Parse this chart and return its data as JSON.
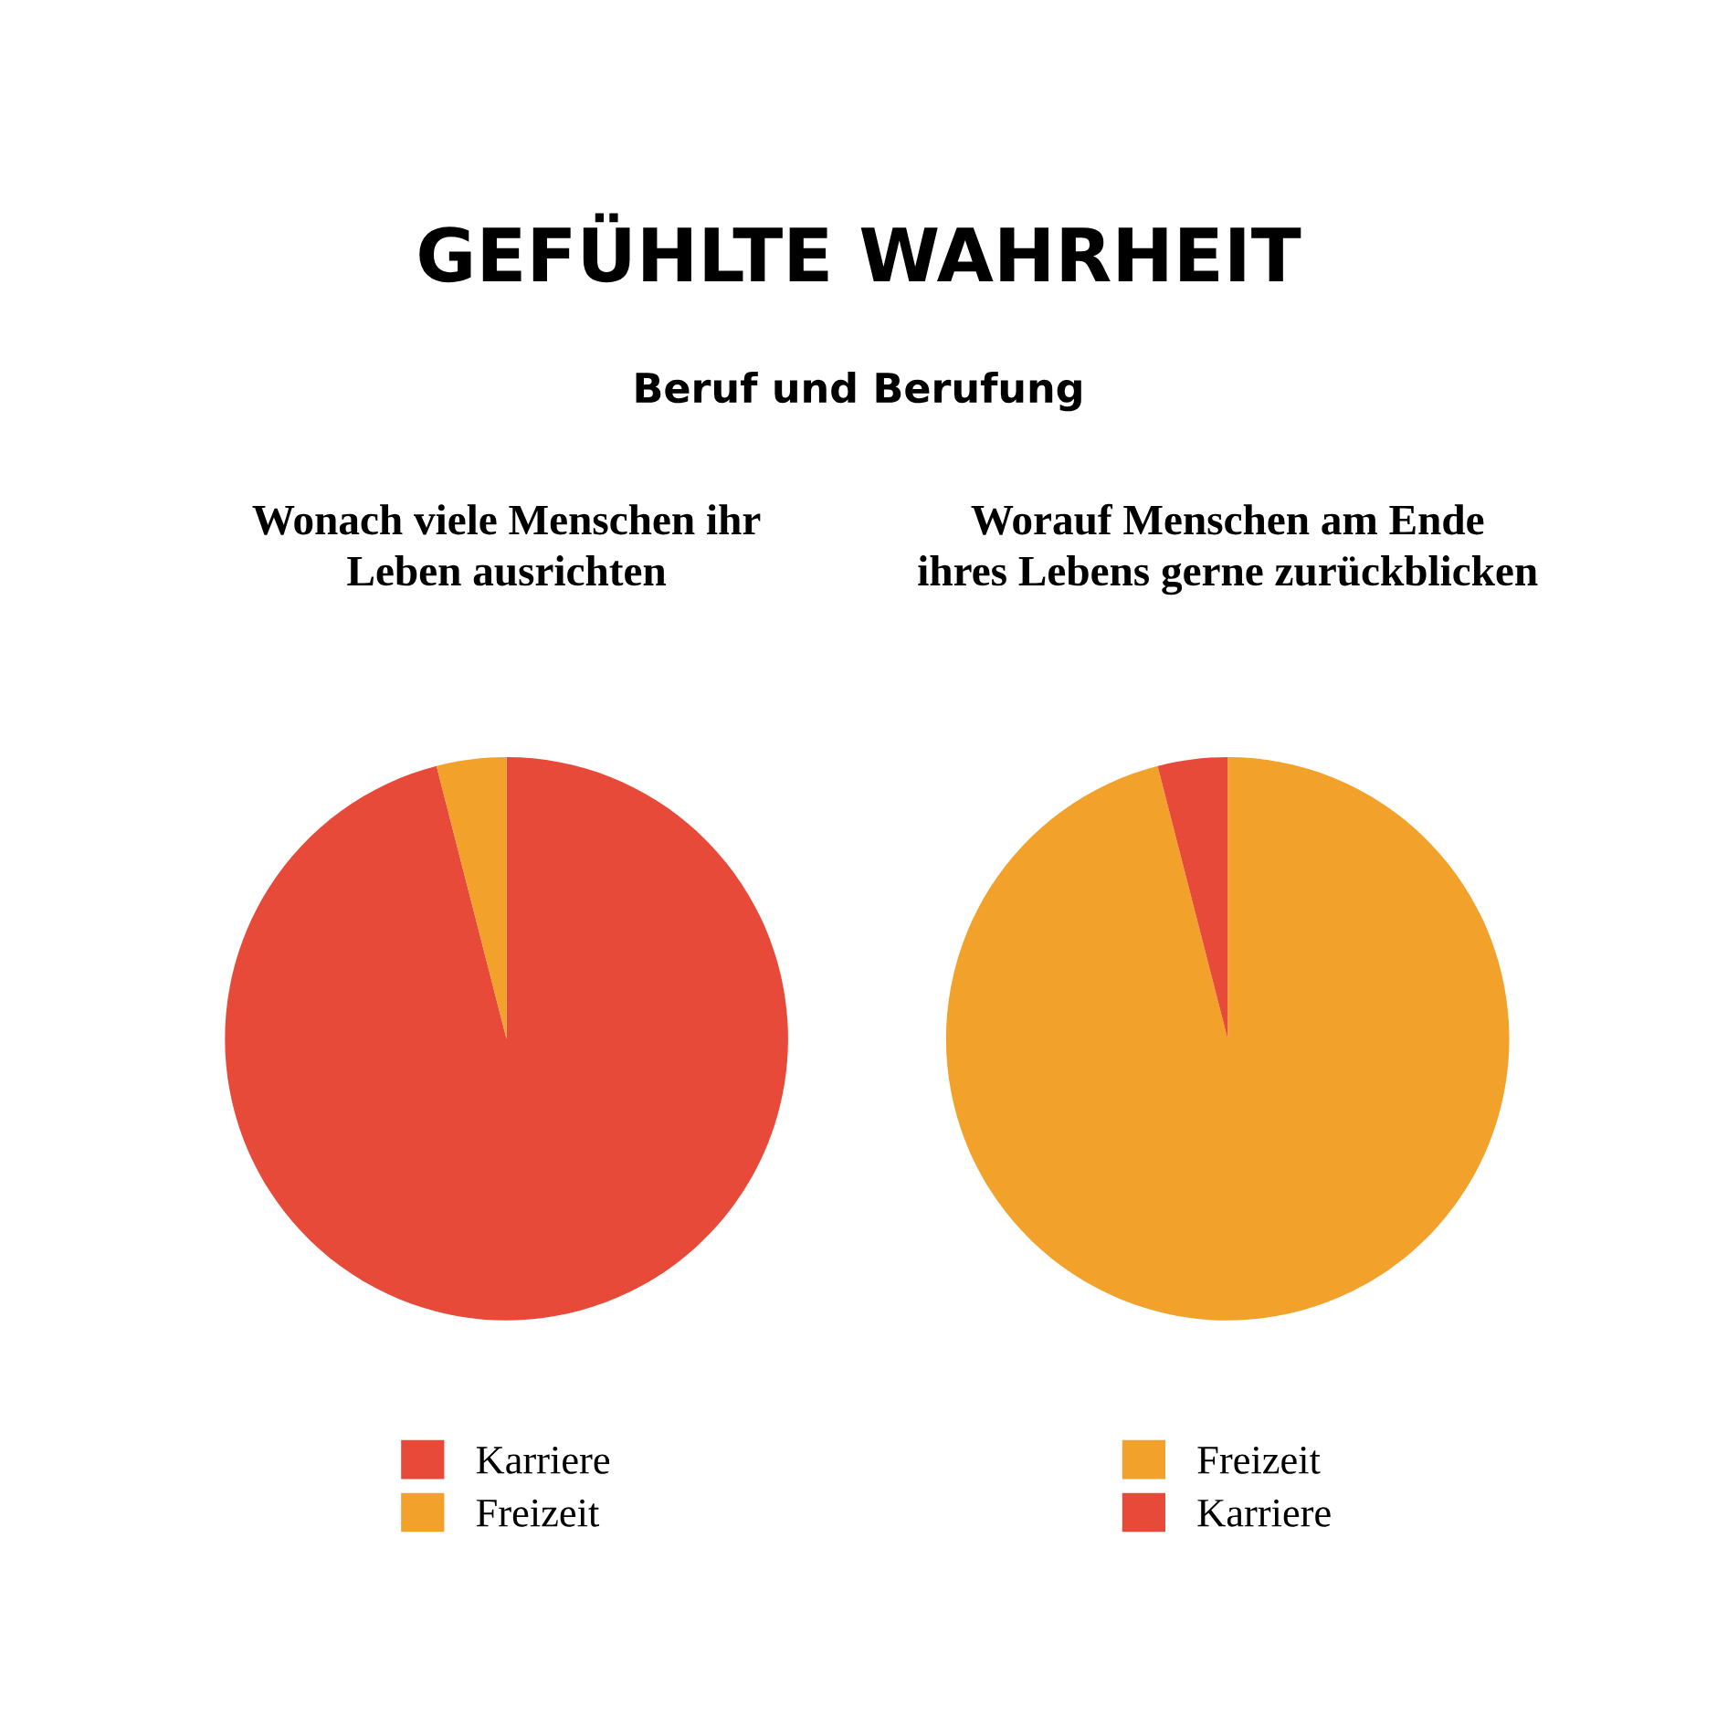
{
  "chart_data": [
    {
      "type": "pie",
      "annotations": [
        "GEFÜHLTE WAHRHEIT",
        "Beruf und Berufung"
      ],
      "title": "Wonach viele Menschen ihr\nLeben ausrichten",
      "categories": [
        "Karriere",
        "Freizeit"
      ],
      "values": [
        96,
        4
      ],
      "colors": [
        "#e84a3a",
        "#f2a12a"
      ],
      "legend": "bottom"
    },
    {
      "type": "pie",
      "title": "Worauf Menschen am Ende\nihres Lebens gerne zurückblicken",
      "categories": [
        "Freizeit",
        "Karriere"
      ],
      "values": [
        96,
        4
      ],
      "colors": [
        "#f2a12a",
        "#e84a3a"
      ],
      "legend": "bottom"
    }
  ]
}
